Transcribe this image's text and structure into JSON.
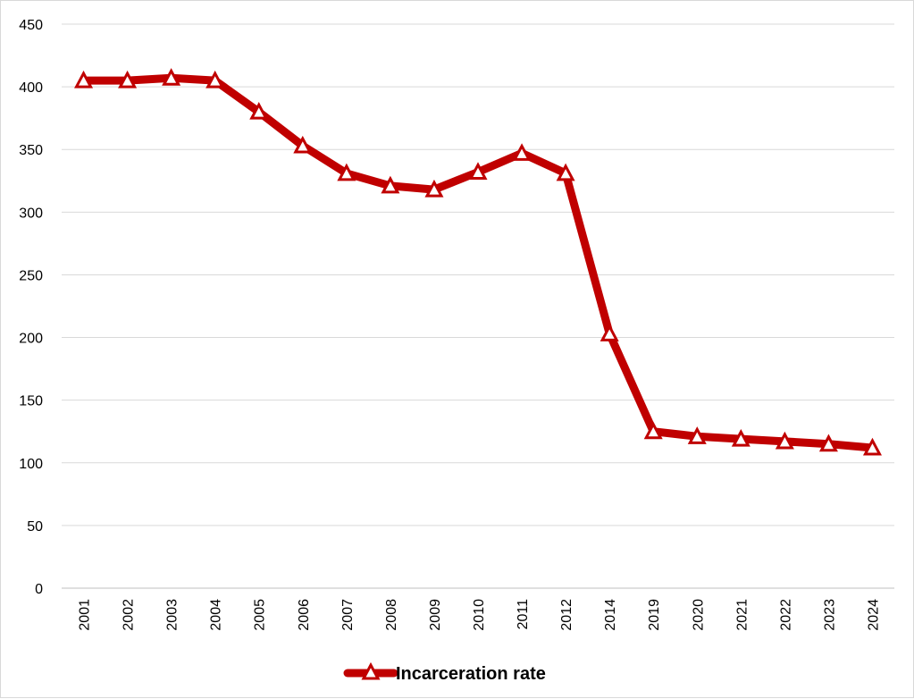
{
  "chart_data": {
    "type": "line",
    "title": "",
    "xlabel": "",
    "ylabel": "",
    "categories": [
      "2001",
      "2002",
      "2003",
      "2004",
      "2005",
      "2006",
      "2007",
      "2008",
      "2009",
      "2010",
      "2011",
      "2012",
      "2014",
      "2019",
      "2020",
      "2021",
      "2022",
      "2023",
      "2024"
    ],
    "series": [
      {
        "name": "Incarceration rate",
        "values": [
          405,
          405,
          407,
          405,
          380,
          353,
          331,
          321,
          318,
          332,
          347,
          331,
          203,
          125,
          121,
          119,
          117,
          115,
          112
        ],
        "color": "#c00000",
        "marker": "triangle"
      }
    ],
    "ylim": [
      0,
      450
    ],
    "yticks": [
      0,
      50,
      100,
      150,
      200,
      250,
      300,
      350,
      400,
      450
    ],
    "grid": true,
    "legend": "bottom-center"
  }
}
